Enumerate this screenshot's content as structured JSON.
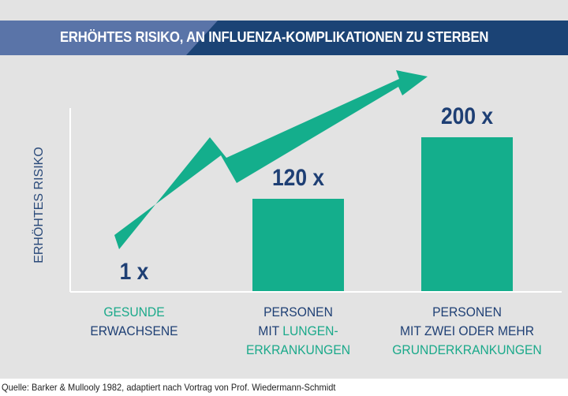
{
  "colors": {
    "bar": "#14ae8c",
    "arrow": "#14ae8c",
    "text_dark": "#1e3f74",
    "text_green": "#1aa98a",
    "banner": "#1b4375",
    "banner_light": "#5a74a8",
    "background": "#e3e3e3"
  },
  "banner": {
    "title": "ERHÖHTES RISIKO, AN INFLUENZA-KOMPLIKATIONEN ZU STERBEN"
  },
  "chart_data": {
    "type": "bar",
    "title": "ERHÖHTES RISIKO, AN INFLUENZA-KOMPLIKATIONEN ZU STERBEN",
    "ylabel": "ERHÖHTES RISIKO",
    "xlabel": "",
    "categories": [
      {
        "line1": "GESUNDE",
        "line2": "ERWACHSENE",
        "line3": ""
      },
      {
        "line1": "PERSONEN",
        "line2_a": "MIT ",
        "line2_b": "LUNGEN-",
        "line3": "ERKRANKUNGEN"
      },
      {
        "line1": "PERSONEN",
        "line2": "MIT ZWEI ODER MEHR",
        "line3": "GRUNDERKRANKUNGEN"
      }
    ],
    "values": [
      1,
      120,
      200
    ],
    "value_labels": [
      "1 x",
      "120 x",
      "200 x"
    ],
    "ylim": [
      0,
      200
    ],
    "grid": false,
    "legend": "none"
  },
  "source": "Quelle: Barker & Mullooly 1982, adaptiert nach Vortrag von Prof. Wiedermann-Schmidt"
}
